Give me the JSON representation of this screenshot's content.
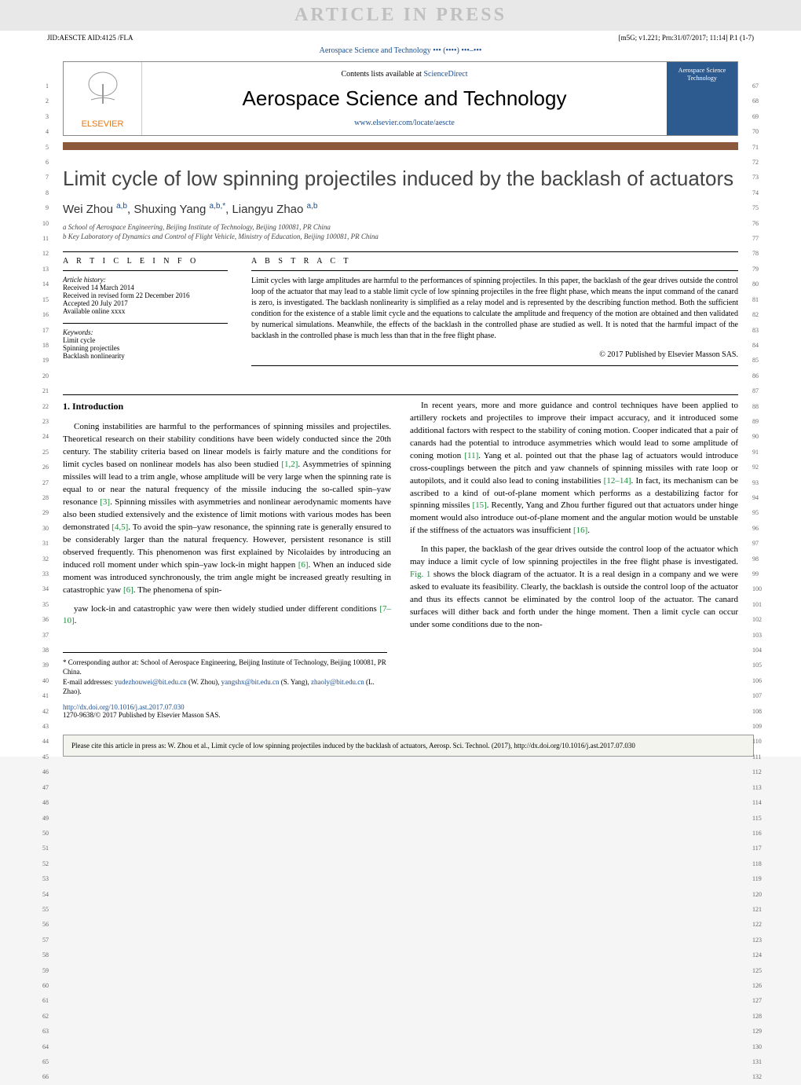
{
  "watermark": "ARTICLE IN PRESS",
  "header": {
    "left": "JID:AESCTE  AID:4125 /FLA",
    "right": "[m5G; v1.221; Prn:31/07/2017; 11:14] P.1 (1-7)",
    "journal_line": "Aerospace Science and Technology ••• (••••) •••–•••"
  },
  "masthead": {
    "publisher": "ELSEVIER",
    "contents_prefix": "Contents lists available at ",
    "contents_link": "ScienceDirect",
    "journal_name": "Aerospace Science and Technology",
    "journal_url": "www.elsevier.com/locate/aescte",
    "cover_text": "Aerospace Science Technology"
  },
  "title": "Limit cycle of low spinning projectiles induced by the backlash of actuators",
  "authors_html": "Wei Zhou <sup>a,b</sup>, Shuxing Yang <sup>a,b,*</sup>, Liangyu Zhao <sup>a,b</sup>",
  "authors": [
    {
      "name": "Wei Zhou",
      "aff": "a,b"
    },
    {
      "name": "Shuxing Yang",
      "aff": "a,b,*"
    },
    {
      "name": "Liangyu Zhao",
      "aff": "a,b"
    }
  ],
  "affiliations": [
    "a School of Aerospace Engineering, Beijing Institute of Technology, Beijing 100081, PR China",
    "b Key Laboratory of Dynamics and Control of Flight Vehicle, Ministry of Education, Beijing 100081, PR China"
  ],
  "article_info": {
    "heading": "A R T I C L E   I N F O",
    "history_label": "Article history:",
    "history": [
      "Received 14 March 2014",
      "Received in revised form 22 December 2016",
      "Accepted 20 July 2017",
      "Available online xxxx"
    ],
    "keywords_label": "Keywords:",
    "keywords": [
      "Limit cycle",
      "Spinning projectiles",
      "Backlash nonlinearity"
    ]
  },
  "abstract": {
    "heading": "A B S T R A C T",
    "text": "Limit cycles with large amplitudes are harmful to the performances of spinning projectiles. In this paper, the backlash of the gear drives outside the control loop of the actuator that may lead to a stable limit cycle of low spinning projectiles in the free flight phase, which means the input command of the canard is zero, is investigated. The backlash nonlinearity is simplified as a relay model and is represented by the describing function method. Both the sufficient condition for the existence of a stable limit cycle and the equations to calculate the amplitude and frequency of the motion are obtained and then validated by numerical simulations. Meanwhile, the effects of the backlash in the controlled phase are studied as well. It is noted that the harmful impact of the backlash in the controlled phase is much less than that in the free flight phase.",
    "copyright": "© 2017 Published by Elsevier Masson SAS."
  },
  "section1": {
    "heading": "1. Introduction",
    "p1": "Coning instabilities are harmful to the performances of spinning missiles and projectiles. Theoretical research on their stability conditions have been widely conducted since the 20th century. The stability criteria based on linear models is fairly mature and the conditions for limit cycles based on nonlinear models has also been studied [1,2]. Asymmetries of spinning missiles will lead to a trim angle, whose amplitude will be very large when the spinning rate is equal to or near the natural frequency of the missile inducing the so-called spin–yaw resonance [3]. Spinning missiles with asymmetries and nonlinear aerodynamic moments have also been studied extensively and the existence of limit motions with various modes has been demonstrated [4,5]. To avoid the spin–yaw resonance, the spinning rate is generally ensured to be considerably larger than the natural frequency. However, persistent resonance is still observed frequently. This phenomenon was first explained by Nicolaides by introducing an induced roll moment under which spin–yaw lock-in might happen [6]. When an induced side moment was introduced synchronously, the trim angle might be increased greatly resulting in catastrophic yaw [6]. The phenomena of spin-",
    "p2": "yaw lock-in and catastrophic yaw were then widely studied under different conditions [7–10].",
    "p3": "In recent years, more and more guidance and control techniques have been applied to artillery rockets and projectiles to improve their impact accuracy, and it introduced some additional factors with respect to the stability of coning motion. Cooper indicated that a pair of canards had the potential to introduce asymmetries which would lead to some amplitude of coning motion [11]. Yang et al. pointed out that the phase lag of actuators would introduce cross-couplings between the pitch and yaw channels of spinning missiles with rate loop or autopilots, and it could also lead to coning instabilities [12–14]. In fact, its mechanism can be ascribed to a kind of out-of-plane moment which performs as a destabilizing factor for spinning missiles [15]. Recently, Yang and Zhou further figured out that actuators under hinge moment would also introduce out-of-plane moment and the angular motion would be unstable if the stiffness of the actuators was insufficient [16].",
    "p4": "In this paper, the backlash of the gear drives outside the control loop of the actuator which may induce a limit cycle of low spinning projectiles in the free flight phase is investigated. Fig. 1 shows the block diagram of the actuator. It is a real design in a company and we were asked to evaluate its feasibility. Clearly, the backlash is outside the control loop of the actuator and thus its effects cannot be eliminated by the control loop of the actuator. The canard surfaces will dither back and forth under the hinge moment. Then a limit cycle can occur under some conditions due to the non-"
  },
  "footnotes": {
    "corresponding": "* Corresponding author at: School of Aerospace Engineering, Beijing Institute of Technology, Beijing 100081, PR China.",
    "emails_label": "E-mail addresses: ",
    "emails": "yudezhouwei@bit.edu.cn (W. Zhou), yangshx@bit.edu.cn (S. Yang), zhaoly@bit.edu.cn (L. Zhao)."
  },
  "doi": {
    "url": "http://dx.doi.org/10.1016/j.ast.2017.07.030",
    "issn_line": "1270-9638/© 2017 Published by Elsevier Masson SAS."
  },
  "citation_box": "Please cite this article in press as: W. Zhou et al., Limit cycle of low spinning projectiles induced by the backlash of actuators, Aerosp. Sci. Technol. (2017), http://dx.doi.org/10.1016/j.ast.2017.07.030",
  "line_numbers": {
    "left_start": 1,
    "left_end": 66,
    "right_start": 67,
    "right_end": 132
  },
  "colors": {
    "link": "#1a4d8f",
    "ref": "#1a8f3a",
    "publisher": "#e67817",
    "bar": "#8b5a3c",
    "cover_bg": "#2d5a8f",
    "watermark_bg": "#e8e8e8",
    "watermark_fg": "#c0c0c0"
  },
  "typography": {
    "title_fontsize": 26,
    "author_fontsize": 15,
    "body_fontsize": 11,
    "abstract_fontsize": 10,
    "footnote_fontsize": 9
  }
}
